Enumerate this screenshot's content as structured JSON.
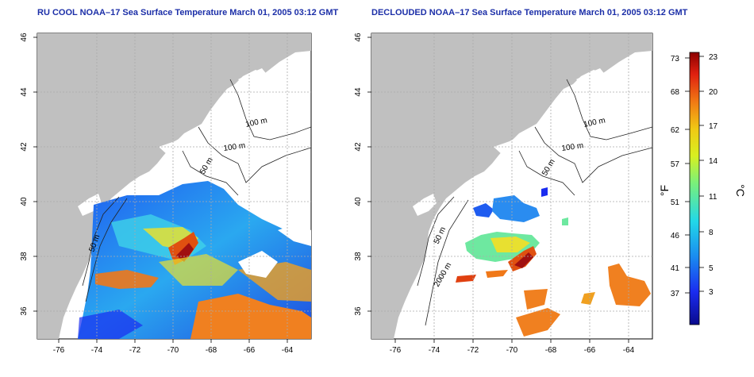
{
  "titles": {
    "left": "RU COOL NOAA–17 Sea Surface Temperature March 01, 2005 03:12 GMT",
    "right": "DECLOUDED NOAA–17 Sea Surface Temperature March 01, 2005 03:12 GMT"
  },
  "axes": {
    "x_ticks": [
      "-76",
      "-74",
      "-72",
      "-70",
      "-68",
      "-66",
      "-64"
    ],
    "y_ticks": [
      "36",
      "38",
      "40",
      "42",
      "44",
      "46"
    ]
  },
  "contour_labels": {
    "left": [
      "100 m",
      "100 m",
      "50 m",
      "50 m"
    ],
    "right": [
      "100 m",
      "100 m",
      "50 m",
      "50 m",
      "2000 m"
    ]
  },
  "colorbar": {
    "fahrenheit_label": "°F",
    "celsius_label": "°C",
    "fahrenheit_ticks": [
      "73",
      "68",
      "62",
      "57",
      "51",
      "46",
      "41",
      "37"
    ],
    "celsius_ticks": [
      "23",
      "20",
      "17",
      "14",
      "11",
      "8",
      "5",
      "3"
    ]
  },
  "colors": {
    "land": "#c0c0c0",
    "title": "#1c2fa8",
    "grid": "#aaaaaa"
  }
}
